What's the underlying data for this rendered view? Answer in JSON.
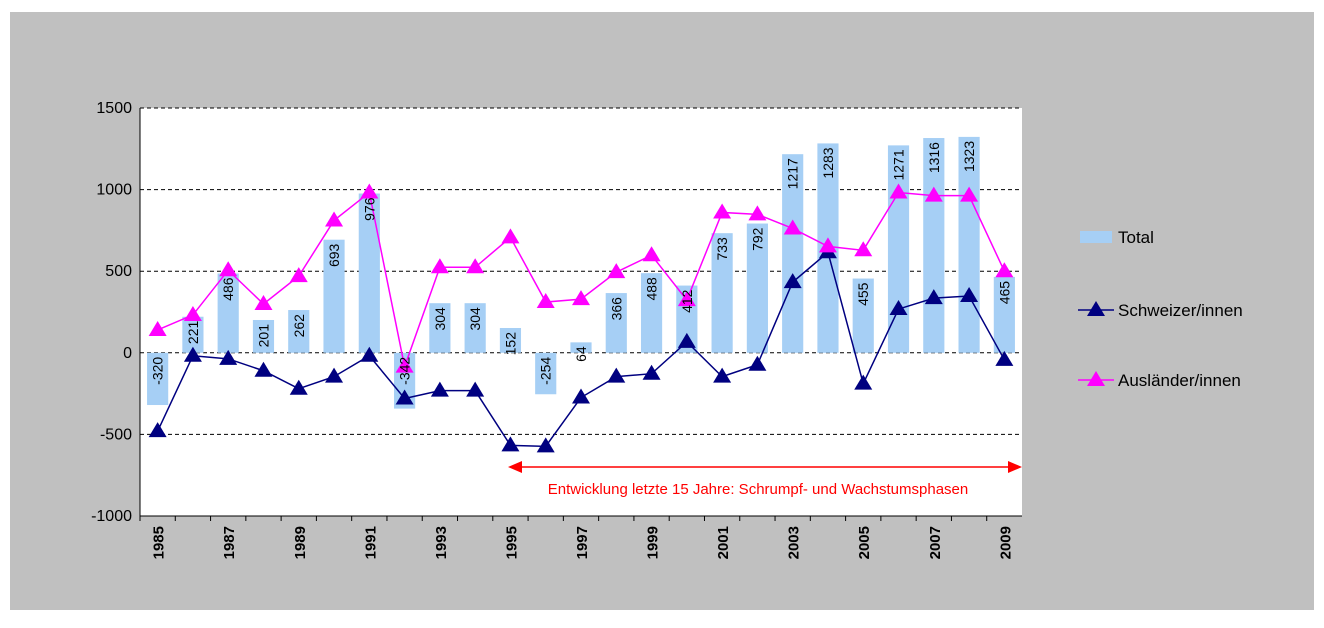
{
  "chart_data": {
    "type": "bar",
    "categories": [
      "1985",
      null,
      "1987",
      null,
      "1989",
      null,
      "1991",
      null,
      "1993",
      null,
      "1995",
      null,
      "1997",
      null,
      "1999",
      null,
      "2001",
      null,
      "2003",
      null,
      "2005",
      null,
      "2007",
      null,
      "2009"
    ],
    "series": [
      {
        "name": "Total",
        "type": "bar",
        "color": "#a6cff5",
        "values": [
          -320,
          221,
          486,
          201,
          262,
          693,
          976,
          -342,
          304,
          304,
          152,
          -254,
          64,
          366,
          488,
          412,
          733,
          792,
          1217,
          1283,
          455,
          1271,
          1316,
          1323,
          465
        ]
      },
      {
        "name": "Schweizer/innen",
        "type": "line",
        "color": "#000080",
        "values": [
          -480,
          -18,
          -37,
          -110,
          -220,
          -146,
          -18,
          -280,
          -232,
          -232,
          -567,
          -573,
          -274,
          -146,
          -128,
          67,
          -146,
          -73,
          433,
          616,
          -189,
          268,
          335,
          348,
          -43
        ]
      },
      {
        "name": "Ausländer/innen",
        "type": "line",
        "color": "#ff00ff",
        "values": [
          140,
          232,
          506,
          299,
          470,
          811,
          982,
          -85,
          524,
          524,
          707,
          311,
          329,
          494,
          598,
          323,
          860,
          848,
          762,
          652,
          628,
          982,
          963,
          963,
          500
        ]
      }
    ],
    "ylim": [
      -1000,
      1500
    ],
    "yticks": [
      -1000,
      -500,
      0,
      500,
      1000,
      1500
    ],
    "grid": true,
    "legend": "right",
    "annotation": "Entwicklung letzte 15 Jahre: Schrumpf- und Wachstumsphasen"
  }
}
